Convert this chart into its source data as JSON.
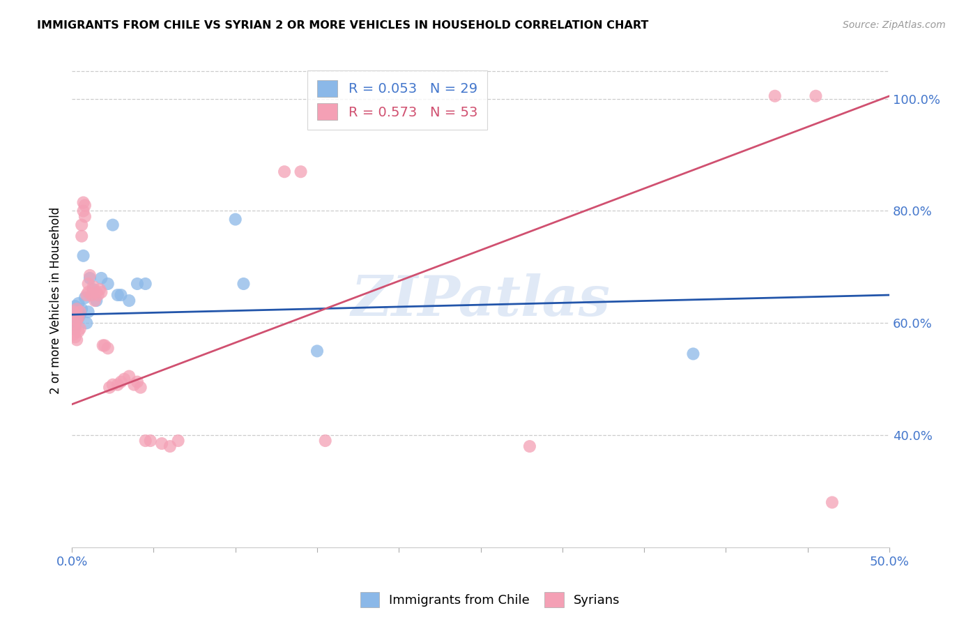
{
  "title": "IMMIGRANTS FROM CHILE VS SYRIAN 2 OR MORE VEHICLES IN HOUSEHOLD CORRELATION CHART",
  "source": "Source: ZipAtlas.com",
  "ylabel": "2 or more Vehicles in Household",
  "yticks": [
    0.4,
    0.6,
    0.8,
    1.0
  ],
  "ytick_labels": [
    "40.0%",
    "60.0%",
    "80.0%",
    "100.0%"
  ],
  "xtick_positions": [
    0.0,
    0.05,
    0.1,
    0.15,
    0.2,
    0.25,
    0.3,
    0.35,
    0.4,
    0.45,
    0.5
  ],
  "watermark": "ZIPatlas",
  "legend_chile_r": "R = 0.053",
  "legend_chile_n": "N = 29",
  "legend_syrian_r": "R = 0.573",
  "legend_syrian_n": "N = 53",
  "chile_color": "#8BB8E8",
  "syrian_color": "#F4A0B5",
  "chile_line_color": "#2255AA",
  "syrian_line_color": "#D05070",
  "chile_points_x": [
    0.001,
    0.001,
    0.002,
    0.002,
    0.003,
    0.003,
    0.004,
    0.004,
    0.005,
    0.006,
    0.007,
    0.008,
    0.009,
    0.01,
    0.011,
    0.013,
    0.015,
    0.018,
    0.022,
    0.025,
    0.028,
    0.03,
    0.035,
    0.04,
    0.045,
    0.1,
    0.105,
    0.15,
    0.38
  ],
  "chile_points_y": [
    0.59,
    0.62,
    0.595,
    0.63,
    0.605,
    0.625,
    0.61,
    0.635,
    0.615,
    0.625,
    0.72,
    0.645,
    0.6,
    0.62,
    0.68,
    0.66,
    0.64,
    0.68,
    0.67,
    0.775,
    0.65,
    0.65,
    0.64,
    0.67,
    0.67,
    0.785,
    0.67,
    0.55,
    0.545
  ],
  "syrian_points_x": [
    0.001,
    0.001,
    0.001,
    0.002,
    0.002,
    0.003,
    0.003,
    0.003,
    0.004,
    0.004,
    0.005,
    0.005,
    0.006,
    0.006,
    0.007,
    0.007,
    0.008,
    0.008,
    0.009,
    0.01,
    0.01,
    0.011,
    0.012,
    0.013,
    0.014,
    0.015,
    0.016,
    0.017,
    0.018,
    0.019,
    0.02,
    0.022,
    0.023,
    0.025,
    0.028,
    0.03,
    0.032,
    0.035,
    0.038,
    0.04,
    0.042,
    0.045,
    0.048,
    0.055,
    0.06,
    0.065,
    0.13,
    0.14,
    0.155,
    0.28,
    0.43,
    0.455,
    0.465
  ],
  "syrian_points_y": [
    0.58,
    0.6,
    0.62,
    0.575,
    0.59,
    0.57,
    0.605,
    0.625,
    0.585,
    0.61,
    0.59,
    0.62,
    0.755,
    0.775,
    0.8,
    0.815,
    0.79,
    0.81,
    0.65,
    0.655,
    0.67,
    0.685,
    0.65,
    0.665,
    0.64,
    0.655,
    0.65,
    0.66,
    0.655,
    0.56,
    0.56,
    0.555,
    0.485,
    0.49,
    0.49,
    0.495,
    0.5,
    0.505,
    0.49,
    0.495,
    0.485,
    0.39,
    0.39,
    0.385,
    0.38,
    0.39,
    0.87,
    0.87,
    0.39,
    0.38,
    1.005,
    1.005,
    0.28
  ],
  "chile_line_x": [
    0.0,
    0.5
  ],
  "chile_line_y": [
    0.615,
    0.65
  ],
  "syrian_line_x": [
    0.0,
    0.5
  ],
  "syrian_line_y": [
    0.455,
    1.005
  ]
}
